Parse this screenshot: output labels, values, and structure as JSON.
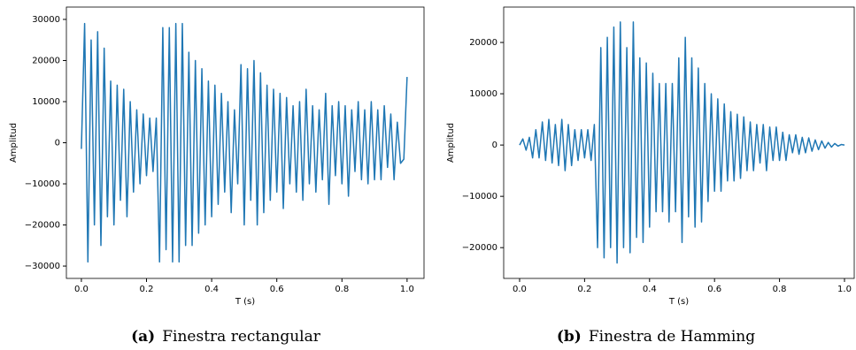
{
  "chart_data": [
    {
      "type": "line",
      "caption_label": "(a)",
      "caption": "Finestra rectangular",
      "xlabel": "T (s)",
      "ylabel": "Amplitud",
      "color": "#1f77b4",
      "xlim": [
        -0.046,
        1.052
      ],
      "ylim": [
        -33000,
        33000
      ],
      "xticks": [
        {
          "value": 0,
          "label": "0.0"
        },
        {
          "value": 0.2,
          "label": "0.2"
        },
        {
          "value": 0.4,
          "label": "0.4"
        },
        {
          "value": 0.6,
          "label": "0.6"
        },
        {
          "value": 0.8,
          "label": "0.8"
        },
        {
          "value": 1,
          "label": "1.0"
        }
      ],
      "yticks": [
        {
          "value": -30000,
          "label": "−30000"
        },
        {
          "value": -20000,
          "label": "−20000"
        },
        {
          "value": -10000,
          "label": "−10000"
        },
        0,
        10000,
        20000,
        30000
      ],
      "x": [
        0,
        0.01,
        0.02,
        0.03,
        0.04,
        0.05,
        0.06,
        0.07,
        0.08,
        0.09,
        0.1,
        0.11,
        0.12,
        0.13,
        0.14,
        0.15,
        0.16,
        0.17,
        0.18,
        0.19,
        0.2,
        0.21,
        0.22,
        0.23,
        0.24,
        0.25,
        0.26,
        0.27,
        0.28,
        0.29,
        0.3,
        0.31,
        0.32,
        0.33,
        0.34,
        0.35,
        0.36,
        0.37,
        0.38,
        0.39,
        0.4,
        0.41,
        0.42,
        0.43,
        0.44,
        0.45,
        0.46,
        0.47,
        0.48,
        0.49,
        0.5,
        0.51,
        0.52,
        0.53,
        0.54,
        0.55,
        0.56,
        0.57,
        0.58,
        0.59,
        0.6,
        0.61,
        0.62,
        0.63,
        0.64,
        0.65,
        0.66,
        0.67,
        0.68,
        0.69,
        0.7,
        0.71,
        0.72,
        0.73,
        0.74,
        0.75,
        0.76,
        0.77,
        0.78,
        0.79,
        0.8,
        0.81,
        0.82,
        0.83,
        0.84,
        0.85,
        0.86,
        0.87,
        0.88,
        0.89,
        0.9,
        0.91,
        0.92,
        0.93,
        0.94,
        0.95,
        0.96,
        0.97,
        0.98,
        0.99,
        1
      ],
      "values": [
        -1500,
        29000,
        -29000,
        25000,
        -20000,
        27000,
        -25000,
        23000,
        -18000,
        15000,
        -20000,
        14000,
        -14000,
        13000,
        -18000,
        10000,
        -12000,
        8000,
        -10000,
        7000,
        -8000,
        6000,
        -7000,
        6000,
        -29000,
        28000,
        -26000,
        28000,
        -29000,
        29000,
        -29000,
        29000,
        -25000,
        22000,
        -25000,
        20000,
        -22000,
        18000,
        -20000,
        15000,
        -18000,
        14000,
        -15000,
        12000,
        -12000,
        10000,
        -17000,
        8000,
        -10000,
        19000,
        -20000,
        18000,
        -14000,
        20000,
        -20000,
        17000,
        -17000,
        14000,
        -14000,
        13000,
        -12000,
        12000,
        -16000,
        11000,
        -10000,
        9000,
        -12000,
        10000,
        -14000,
        13000,
        -10000,
        9000,
        -12000,
        8000,
        -9000,
        12000,
        -15000,
        9000,
        -8000,
        10000,
        -10000,
        9000,
        -13000,
        8000,
        -7000,
        10000,
        -9000,
        8000,
        -10000,
        10000,
        -9000,
        8000,
        -9000,
        9000,
        -6000,
        7000,
        -9000,
        5000,
        -5000,
        -4000,
        16000
      ]
    },
    {
      "type": "line",
      "caption_label": "(b)",
      "caption": "Finestra de Hamming",
      "xlabel": "T (s)",
      "ylabel": "Amplitud",
      "color": "#1f77b4",
      "xlim": [
        -0.049,
        1.03
      ],
      "ylim": [
        -26000,
        26900
      ],
      "xticks": [
        {
          "value": 0,
          "label": "0.0"
        },
        {
          "value": 0.2,
          "label": "0.2"
        },
        {
          "value": 0.4,
          "label": "0.4"
        },
        {
          "value": 0.6,
          "label": "0.6"
        },
        {
          "value": 0.8,
          "label": "0.8"
        },
        {
          "value": 1,
          "label": "1.0"
        }
      ],
      "yticks": [
        {
          "value": -20000,
          "label": "−20000"
        },
        {
          "value": -10000,
          "label": "−10000"
        },
        0,
        10000,
        20000
      ],
      "x": [
        0,
        0.01,
        0.02,
        0.03,
        0.04,
        0.05,
        0.06,
        0.07,
        0.08,
        0.09,
        0.1,
        0.11,
        0.12,
        0.13,
        0.14,
        0.15,
        0.16,
        0.17,
        0.18,
        0.19,
        0.2,
        0.21,
        0.22,
        0.23,
        0.24,
        0.25,
        0.26,
        0.27,
        0.28,
        0.29,
        0.3,
        0.31,
        0.32,
        0.33,
        0.34,
        0.35,
        0.36,
        0.37,
        0.38,
        0.39,
        0.4,
        0.41,
        0.42,
        0.43,
        0.44,
        0.45,
        0.46,
        0.47,
        0.48,
        0.49,
        0.5,
        0.51,
        0.52,
        0.53,
        0.54,
        0.55,
        0.56,
        0.57,
        0.58,
        0.59,
        0.6,
        0.61,
        0.62,
        0.63,
        0.64,
        0.65,
        0.66,
        0.67,
        0.68,
        0.69,
        0.7,
        0.71,
        0.72,
        0.73,
        0.74,
        0.75,
        0.76,
        0.77,
        0.78,
        0.79,
        0.8,
        0.81,
        0.82,
        0.83,
        0.84,
        0.85,
        0.86,
        0.87,
        0.88,
        0.89,
        0.9,
        0.91,
        0.92,
        0.93,
        0.94,
        0.95,
        0.96,
        0.97,
        0.98,
        0.99,
        1
      ],
      "values": [
        0,
        1200,
        -1000,
        1500,
        -2500,
        3000,
        -2500,
        4500,
        -3000,
        5000,
        -3500,
        4000,
        -4000,
        5000,
        -5000,
        4000,
        -4000,
        3000,
        -3000,
        3000,
        -2500,
        3000,
        -3000,
        4000,
        -20000,
        19000,
        -22000,
        21000,
        -20000,
        23000,
        -23000,
        24000,
        -20000,
        19000,
        -21000,
        24000,
        -18000,
        17000,
        -19000,
        16000,
        -16000,
        14000,
        -13000,
        12000,
        -13000,
        12000,
        -15000,
        12000,
        -13000,
        17000,
        -19000,
        21000,
        -14000,
        17000,
        -16000,
        15000,
        -15000,
        12000,
        -11000,
        10000,
        -9000,
        9000,
        -9000,
        8000,
        -7000,
        6500,
        -7000,
        6000,
        -6500,
        5500,
        -5000,
        4500,
        -5000,
        4000,
        -3500,
        4000,
        -5000,
        3500,
        -3000,
        3500,
        -3000,
        2500,
        -3000,
        2000,
        -1500,
        2000,
        -1800,
        1500,
        -1500,
        1400,
        -1200,
        1000,
        -900,
        800,
        -600,
        500,
        -400,
        300,
        -200,
        100,
        0
      ]
    }
  ]
}
